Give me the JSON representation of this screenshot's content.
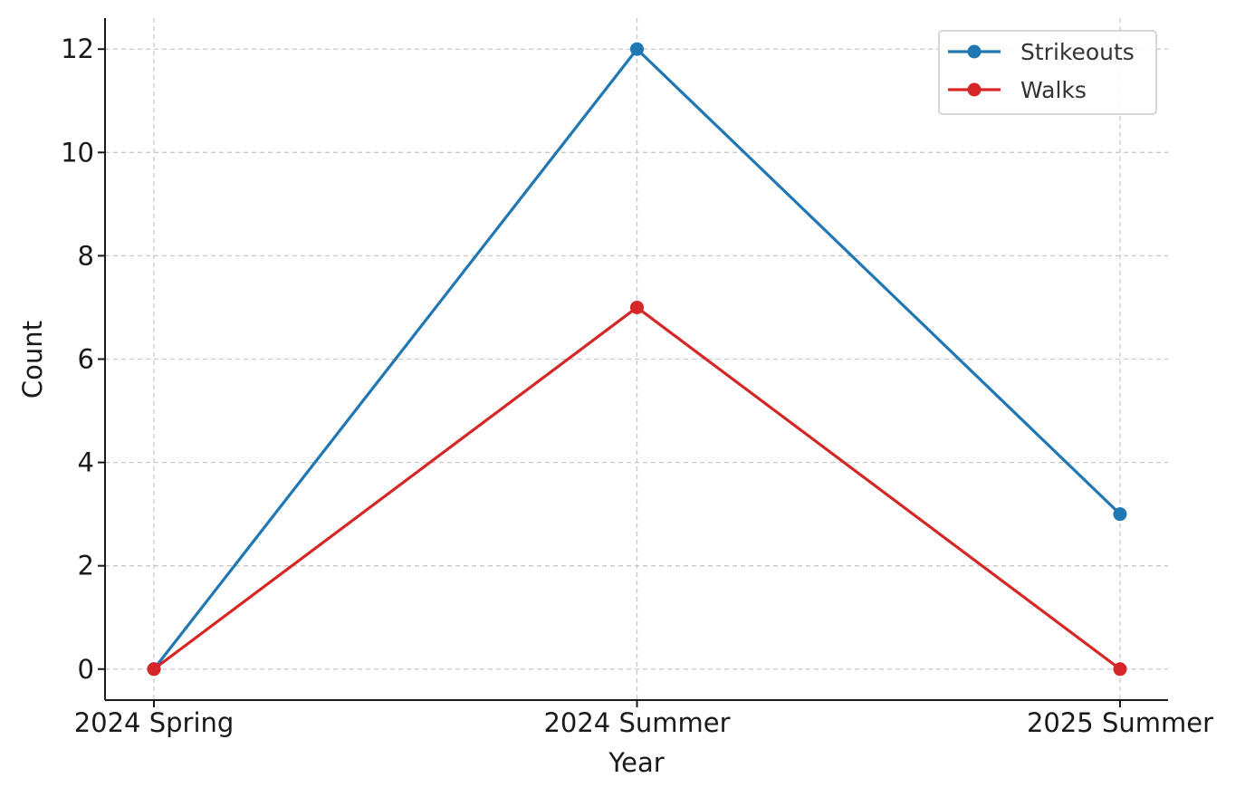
{
  "chart_data": {
    "type": "line",
    "categories": [
      "2024 Spring",
      "2024 Summer",
      "2025 Summer"
    ],
    "series": [
      {
        "name": "Strikeouts",
        "values": [
          0,
          12,
          3
        ],
        "color": "#1f77b4"
      },
      {
        "name": "Walks",
        "values": [
          0,
          7,
          0
        ],
        "color": "#d62728"
      }
    ],
    "xlabel": "Year",
    "ylabel": "Count",
    "ylim": [
      -0.6,
      12.6
    ],
    "yticks": [
      0,
      2,
      4,
      6,
      8,
      10,
      12
    ],
    "grid": true,
    "legend": "top-right",
    "marker": "circle"
  }
}
